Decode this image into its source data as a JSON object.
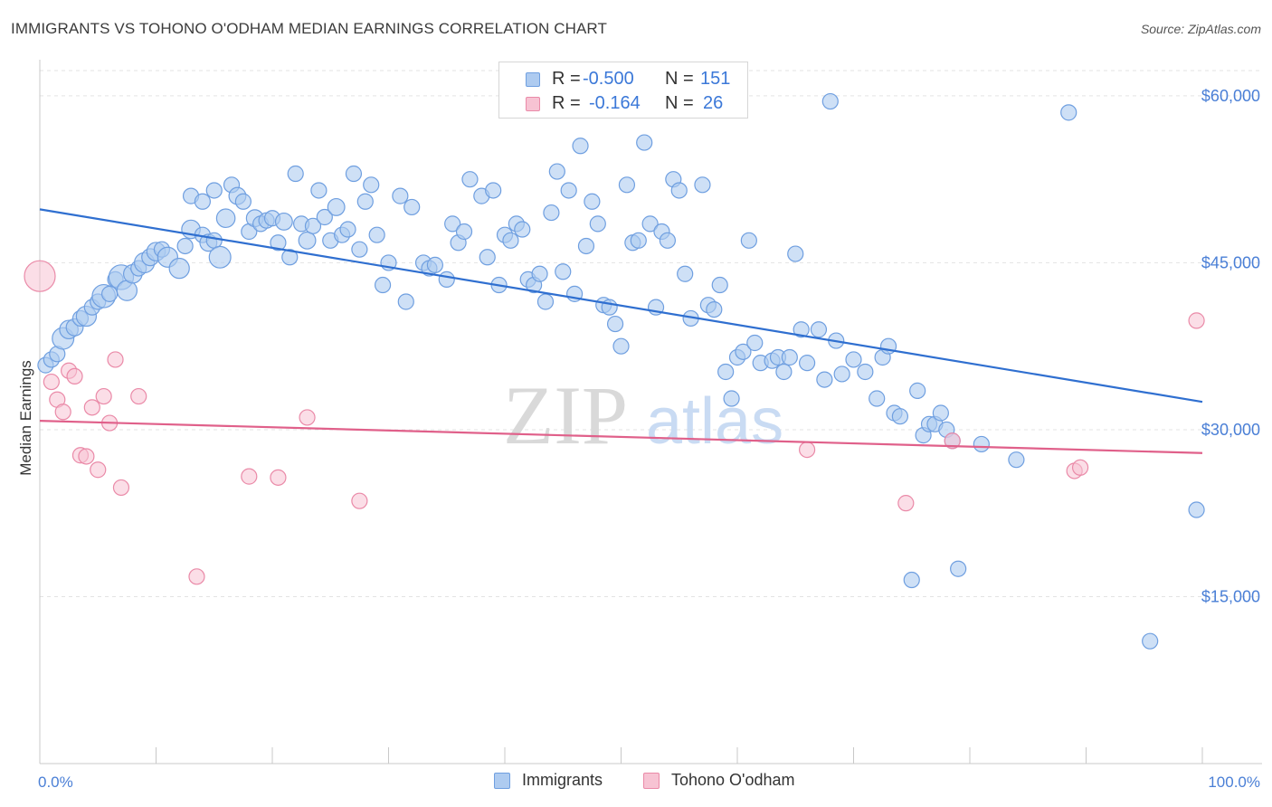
{
  "title": "IMMIGRANTS VS TOHONO O'ODHAM MEDIAN EARNINGS CORRELATION CHART",
  "source": "Source: ZipAtlas.com",
  "watermark": {
    "zip": "ZIP",
    "atlas": "atlas"
  },
  "legend": {
    "rows": [
      {
        "r_label": "R =",
        "r_value": "-0.500",
        "n_label": "N =",
        "n_value": "151"
      },
      {
        "r_label": "R =",
        "r_value": "-0.164",
        "n_label": "N =",
        "n_value": "26"
      }
    ]
  },
  "bottom_legend": {
    "immigrants": "Immigrants",
    "tohono": "Tohono O'odham"
  },
  "colors": {
    "immigrants_fill": "#aecbf0",
    "immigrants_stroke": "#6f9fe0",
    "immigrants_line": "#2f6fd0",
    "tohono_fill": "#f7c3d3",
    "tohono_stroke": "#ea8aa8",
    "tohono_line": "#e0608a",
    "tick_text": "#4a7fd6",
    "grid": "#e3e3e3"
  },
  "chart_data": {
    "type": "scatter",
    "title": "IMMIGRANTS VS TOHONO O'ODHAM MEDIAN EARNINGS CORRELATION CHART",
    "xlabel": "",
    "ylabel": "Median Earnings",
    "xlim": [
      0,
      100
    ],
    "ylim": [
      0,
      63000
    ],
    "x_ticks": [
      "0.0%",
      "100.0%"
    ],
    "y_ticks": [
      {
        "value": 15000,
        "label": "$15,000"
      },
      {
        "value": 30000,
        "label": "$30,000"
      },
      {
        "value": 45000,
        "label": "$45,000"
      },
      {
        "value": 60000,
        "label": "$60,000"
      }
    ],
    "grid": true,
    "legend_placement": "top-center",
    "series": [
      {
        "name": "Immigrants",
        "trend": {
          "x": [
            0,
            100
          ],
          "y": [
            49800,
            32500
          ]
        },
        "points": [
          [
            0.5,
            35800,
            1
          ],
          [
            1,
            36300,
            1
          ],
          [
            1.5,
            36800,
            1
          ],
          [
            2,
            38200,
            1.4
          ],
          [
            2.5,
            39000,
            1.2
          ],
          [
            3,
            39200,
            1.1
          ],
          [
            3.5,
            40000,
            1
          ],
          [
            4,
            40200,
            1.3
          ],
          [
            4.5,
            41000,
            1
          ],
          [
            5,
            41500,
            1
          ],
          [
            5.5,
            42000,
            1.5
          ],
          [
            6,
            42200,
            1
          ],
          [
            6.5,
            43500,
            1
          ],
          [
            7,
            43700,
            1.6
          ],
          [
            7.5,
            42500,
            1.3
          ],
          [
            8,
            44000,
            1.2
          ],
          [
            8.5,
            44500,
            1
          ],
          [
            9,
            45000,
            1.3
          ],
          [
            9.5,
            45500,
            1.1
          ],
          [
            10,
            46000,
            1.2
          ],
          [
            10.5,
            46200,
            1
          ],
          [
            11,
            45500,
            1.3
          ],
          [
            12,
            44500,
            1.3
          ],
          [
            12.5,
            46500,
            1
          ],
          [
            13,
            48000,
            1.2
          ],
          [
            14,
            47500,
            1
          ],
          [
            14.5,
            46800,
            1.1
          ],
          [
            15,
            47000,
            1
          ],
          [
            15.5,
            45500,
            1.4
          ],
          [
            13,
            51000,
            1
          ],
          [
            14,
            50500,
            1
          ],
          [
            15,
            51500,
            1
          ],
          [
            16,
            49000,
            1.2
          ],
          [
            16.5,
            52000,
            1
          ],
          [
            17,
            51000,
            1.1
          ],
          [
            17.5,
            50500,
            1
          ],
          [
            18,
            47800,
            1
          ],
          [
            18.5,
            49000,
            1.1
          ],
          [
            19,
            48500,
            1
          ],
          [
            19.5,
            48800,
            1
          ],
          [
            20,
            49000,
            1
          ],
          [
            20.5,
            46800,
            1
          ],
          [
            21,
            48700,
            1.1
          ],
          [
            21.5,
            45500,
            1
          ],
          [
            22,
            53000,
            1
          ],
          [
            22.5,
            48500,
            1
          ],
          [
            23,
            47000,
            1.1
          ],
          [
            23.5,
            48300,
            1
          ],
          [
            24,
            51500,
            1
          ],
          [
            24.5,
            49100,
            1
          ],
          [
            25,
            47000,
            1
          ],
          [
            25.5,
            50000,
            1.1
          ],
          [
            26,
            47500,
            1
          ],
          [
            26.5,
            48000,
            1
          ],
          [
            27,
            53000,
            1
          ],
          [
            27.5,
            46200,
            1
          ],
          [
            28,
            50500,
            1
          ],
          [
            28.5,
            52000,
            1
          ],
          [
            29,
            47500,
            1
          ],
          [
            29.5,
            43000,
            1
          ],
          [
            30,
            45000,
            1
          ],
          [
            31,
            51000,
            1
          ],
          [
            31.5,
            41500,
            1
          ],
          [
            32,
            50000,
            1
          ],
          [
            33,
            45000,
            1
          ],
          [
            33.5,
            44500,
            1
          ],
          [
            34,
            44800,
            1
          ],
          [
            35,
            43500,
            1
          ],
          [
            35.5,
            48500,
            1
          ],
          [
            36,
            46800,
            1
          ],
          [
            36.5,
            47800,
            1
          ],
          [
            37,
            52500,
            1
          ],
          [
            38,
            51000,
            1
          ],
          [
            38.5,
            45500,
            1
          ],
          [
            39,
            51500,
            1
          ],
          [
            39.5,
            43000,
            1
          ],
          [
            40,
            47500,
            1
          ],
          [
            40.5,
            47000,
            1
          ],
          [
            41,
            48500,
            1
          ],
          [
            41.5,
            48000,
            1
          ],
          [
            42,
            43500,
            1
          ],
          [
            42.5,
            43000,
            1
          ],
          [
            43,
            44000,
            1
          ],
          [
            43.5,
            41500,
            1
          ],
          [
            44,
            49500,
            1
          ],
          [
            44.5,
            53200,
            1
          ],
          [
            45,
            44200,
            1
          ],
          [
            45.5,
            51500,
            1
          ],
          [
            46,
            42200,
            1
          ],
          [
            46.5,
            55500,
            1
          ],
          [
            47,
            46500,
            1
          ],
          [
            47.5,
            50500,
            1
          ],
          [
            48,
            48500,
            1
          ],
          [
            48.5,
            41200,
            1
          ],
          [
            49,
            41000,
            1
          ],
          [
            49.5,
            39500,
            1
          ],
          [
            50,
            37500,
            1
          ],
          [
            50.5,
            52000,
            1
          ],
          [
            51,
            46800,
            1
          ],
          [
            51.5,
            47000,
            1
          ],
          [
            52,
            55800,
            1
          ],
          [
            52.5,
            48500,
            1
          ],
          [
            53,
            41000,
            1
          ],
          [
            53.5,
            47800,
            1
          ],
          [
            54,
            47000,
            1
          ],
          [
            54.5,
            52500,
            1
          ],
          [
            55,
            51500,
            1
          ],
          [
            55.5,
            44000,
            1
          ],
          [
            56,
            40000,
            1
          ],
          [
            57,
            52000,
            1
          ],
          [
            57.5,
            41200,
            1
          ],
          [
            58,
            40800,
            1
          ],
          [
            58.5,
            43000,
            1
          ],
          [
            59,
            35200,
            1
          ],
          [
            59.5,
            32800,
            1
          ],
          [
            60,
            36500,
            1
          ],
          [
            60.5,
            37000,
            1
          ],
          [
            61,
            47000,
            1
          ],
          [
            61.5,
            37800,
            1
          ],
          [
            62,
            36000,
            1
          ],
          [
            63,
            36200,
            1
          ],
          [
            63.5,
            36500,
            1
          ],
          [
            64,
            35200,
            1
          ],
          [
            64.5,
            36500,
            1
          ],
          [
            65,
            45800,
            1
          ],
          [
            65.5,
            39000,
            1
          ],
          [
            66,
            36000,
            1
          ],
          [
            67,
            39000,
            1
          ],
          [
            67.5,
            34500,
            1
          ],
          [
            68,
            59500,
            1
          ],
          [
            68.5,
            38000,
            1
          ],
          [
            69,
            35000,
            1
          ],
          [
            70,
            36300,
            1
          ],
          [
            71,
            35200,
            1
          ],
          [
            72,
            32800,
            1
          ],
          [
            72.5,
            36500,
            1
          ],
          [
            73,
            37500,
            1
          ],
          [
            73.5,
            31500,
            1
          ],
          [
            74,
            31200,
            1
          ],
          [
            75,
            16500,
            1
          ],
          [
            75.5,
            33500,
            1
          ],
          [
            76,
            29500,
            1
          ],
          [
            76.5,
            30500,
            1
          ],
          [
            77,
            30500,
            1
          ],
          [
            77.5,
            31500,
            1
          ],
          [
            78,
            30000,
            1
          ],
          [
            78.5,
            29000,
            1
          ],
          [
            79,
            17500,
            1
          ],
          [
            81,
            28700,
            1
          ],
          [
            84,
            27300,
            1
          ],
          [
            88.5,
            58500,
            1
          ],
          [
            95.5,
            11000,
            1
          ],
          [
            99.5,
            22800,
            1
          ]
        ]
      },
      {
        "name": "Tohono O'odham",
        "trend": {
          "x": [
            0,
            100
          ],
          "y": [
            30800,
            27900
          ]
        },
        "points": [
          [
            0,
            43800,
            2
          ],
          [
            1,
            34300,
            1
          ],
          [
            1.5,
            32700,
            1
          ],
          [
            2,
            31600,
            1
          ],
          [
            2.5,
            35300,
            1
          ],
          [
            3,
            34800,
            1
          ],
          [
            3.5,
            27700,
            1
          ],
          [
            4,
            27600,
            1
          ],
          [
            4.5,
            32000,
            1
          ],
          [
            5,
            26400,
            1
          ],
          [
            5.5,
            33000,
            1
          ],
          [
            6,
            30600,
            1
          ],
          [
            6.5,
            36300,
            1
          ],
          [
            7,
            24800,
            1
          ],
          [
            8.5,
            33000,
            1
          ],
          [
            13.5,
            16800,
            1
          ],
          [
            18,
            25800,
            1
          ],
          [
            20.5,
            25700,
            1
          ],
          [
            23,
            31100,
            1
          ],
          [
            27.5,
            23600,
            1
          ],
          [
            66,
            28200,
            1
          ],
          [
            74.5,
            23400,
            1
          ],
          [
            78.5,
            29000,
            1
          ],
          [
            89,
            26300,
            1
          ],
          [
            89.5,
            26600,
            1
          ],
          [
            99.5,
            39800,
            1
          ]
        ]
      }
    ]
  }
}
